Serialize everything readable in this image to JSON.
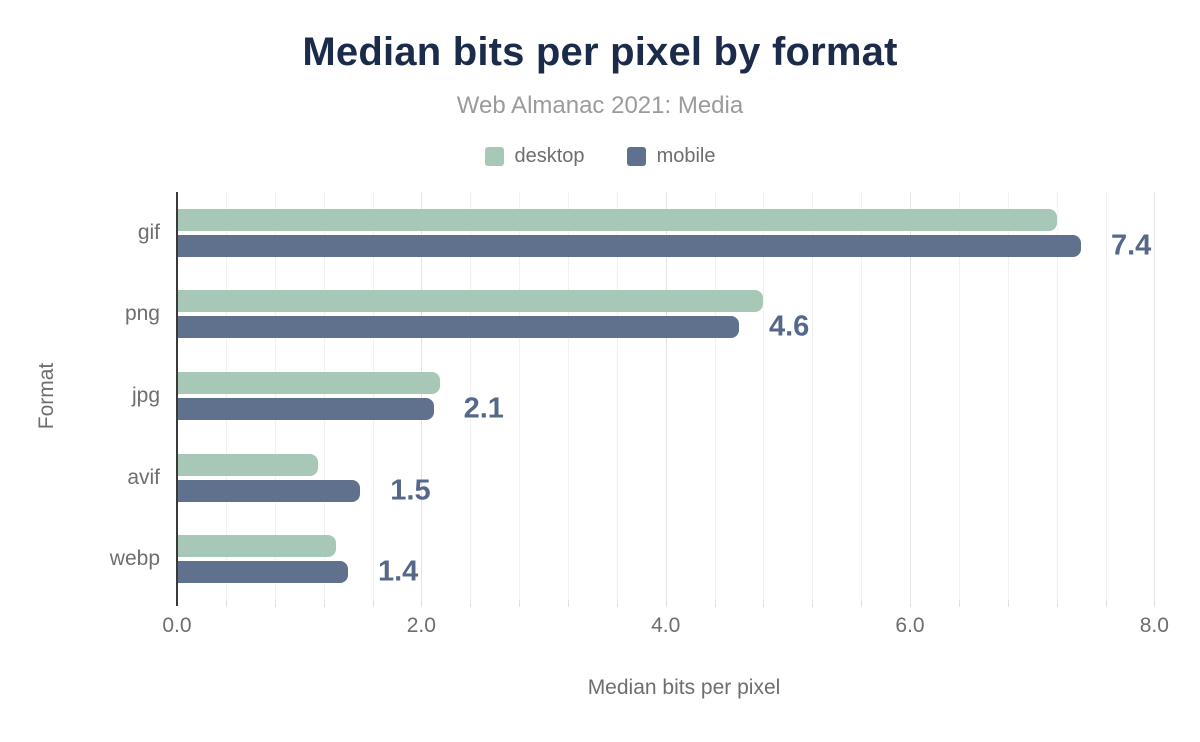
{
  "header": {
    "title": "Median bits per pixel by format",
    "subtitle": "Web Almanac 2021: Media"
  },
  "legend": [
    {
      "label": "desktop",
      "color": "#a7c8b6"
    },
    {
      "label": "mobile",
      "color": "#5f718c"
    }
  ],
  "chart_data": {
    "type": "bar",
    "orientation": "horizontal",
    "title": "Median bits per pixel by format",
    "subtitle": "Web Almanac 2021: Media",
    "xlabel": "Median bits per pixel",
    "ylabel": "Format",
    "categories": [
      "gif",
      "png",
      "jpg",
      "avif",
      "webp"
    ],
    "series": [
      {
        "name": "desktop",
        "color": "#a7c8b6",
        "values": [
          7.2,
          4.8,
          2.15,
          1.15,
          1.3
        ]
      },
      {
        "name": "mobile",
        "color": "#5f718c",
        "values": [
          7.4,
          4.6,
          2.1,
          1.5,
          1.4
        ]
      }
    ],
    "bar_labels": {
      "series": "mobile",
      "values": [
        "7.4",
        "4.6",
        "2.1",
        "1.5",
        "1.4"
      ]
    },
    "xlim": [
      0,
      8.3
    ],
    "xticks": [
      {
        "value": 0,
        "label": "0.0"
      },
      {
        "value": 2,
        "label": "2.0"
      },
      {
        "value": 4,
        "label": "4.0"
      },
      {
        "value": 6,
        "label": "6.0"
      },
      {
        "value": 8,
        "label": "8.0"
      }
    ],
    "grid": {
      "minor_step": 0.4,
      "major_step": 2.0,
      "max_line": 8.0,
      "vertical": true
    },
    "legend_position": "top"
  },
  "colors": {
    "title": "#1b2b49",
    "subtitle": "#9b9b9b",
    "axis_text": "#6e6e6e",
    "value_label": "#55688a",
    "axis_line": "#3a3a3a",
    "gridline_minor": "#f1f1f1",
    "gridline_major": "#e4e4e4",
    "background": "#ffffff"
  }
}
